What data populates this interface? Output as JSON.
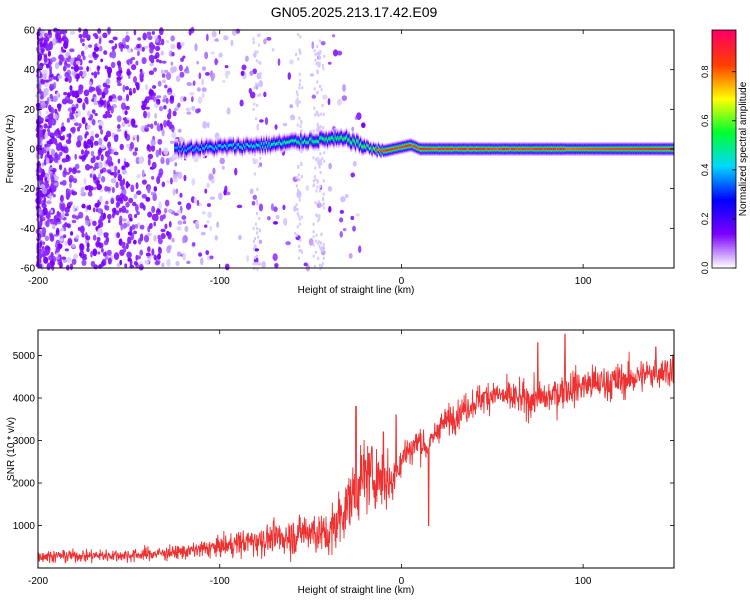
{
  "figure": {
    "title": "GN05.2025.213.17.42.E09"
  },
  "chart_data": [
    {
      "type": "heatmap",
      "xlabel": "Height of straight line (km)",
      "ylabel": "Frequency (Hz)",
      "xlim": [
        -200,
        150
      ],
      "ylim": [
        -60,
        60
      ],
      "x_ticks": [
        -200,
        -100,
        0,
        100
      ],
      "y_ticks": [
        -60,
        -40,
        -20,
        0,
        20,
        40,
        60
      ],
      "colorbar": {
        "label": "Normalized spectral amplitude",
        "range": [
          0,
          0.97
        ],
        "ticks": [
          0.0,
          0.2,
          0.4,
          0.6,
          0.8
        ],
        "colors": [
          "#ffffff",
          "#7a00ff",
          "#0000ff",
          "#00d8ff",
          "#00ff30",
          "#ffff00",
          "#ff4000",
          "#ff0060"
        ]
      },
      "features": {
        "noise_region_x": [
          -200,
          -40
        ],
        "noise_level": 0.2,
        "signal_start_x": -125,
        "signal_end_x": 150,
        "center_frequency_track": [
          [
            -125,
            0
          ],
          [
            -100,
            1
          ],
          [
            -75,
            2
          ],
          [
            -55,
            4
          ],
          [
            -40,
            5
          ],
          [
            -30,
            5
          ],
          [
            -20,
            1
          ],
          [
            -10,
            -1
          ],
          [
            0,
            1
          ],
          [
            5,
            2
          ],
          [
            10,
            0
          ],
          [
            20,
            0
          ],
          [
            150,
            0
          ]
        ],
        "peak_amplitude_region_x": [
          -15,
          90
        ],
        "peak_amplitude": 0.95
      }
    },
    {
      "type": "line",
      "xlabel": "Height of straight line (km)",
      "ylabel": "SNR (10 * v/v)",
      "xlim": [
        -200,
        150
      ],
      "ylim": [
        0,
        5600
      ],
      "x_ticks": [
        -200,
        -100,
        0,
        100
      ],
      "y_ticks": [
        1000,
        2000,
        3000,
        4000,
        5000
      ],
      "series": [
        {
          "color": "#ee3030",
          "trend": [
            [
              -200,
              280
            ],
            [
              -150,
              300
            ],
            [
              -120,
              380
            ],
            [
              -100,
              500
            ],
            [
              -80,
              650
            ],
            [
              -60,
              750
            ],
            [
              -50,
              900
            ],
            [
              -40,
              750
            ],
            [
              -30,
              1500
            ],
            [
              -20,
              2200
            ],
            [
              -10,
              2100
            ],
            [
              -5,
              2000
            ],
            [
              0,
              2600
            ],
            [
              5,
              2800
            ],
            [
              10,
              3000
            ],
            [
              15,
              2800
            ],
            [
              20,
              3300
            ],
            [
              30,
              3600
            ],
            [
              40,
              3900
            ],
            [
              50,
              4100
            ],
            [
              60,
              4000
            ],
            [
              70,
              3950
            ],
            [
              80,
              4000
            ],
            [
              90,
              4200
            ],
            [
              100,
              4300
            ],
            [
              120,
              4400
            ],
            [
              140,
              4600
            ],
            [
              150,
              4700
            ]
          ],
          "noise_amplitude": [
            [
              -200,
              250
            ],
            [
              -120,
              300
            ],
            [
              -80,
              600
            ],
            [
              -40,
              1000
            ],
            [
              -20,
              1500
            ],
            [
              0,
              800
            ],
            [
              20,
              600
            ],
            [
              60,
              700
            ],
            [
              100,
              800
            ],
            [
              150,
              700
            ]
          ],
          "spikes": [
            [
              -25,
              3800
            ],
            [
              -10,
              3200
            ],
            [
              -3,
              3600
            ],
            [
              15,
              1000
            ],
            [
              75,
              5300
            ],
            [
              90,
              5500
            ],
            [
              140,
              5200
            ]
          ]
        }
      ]
    }
  ]
}
